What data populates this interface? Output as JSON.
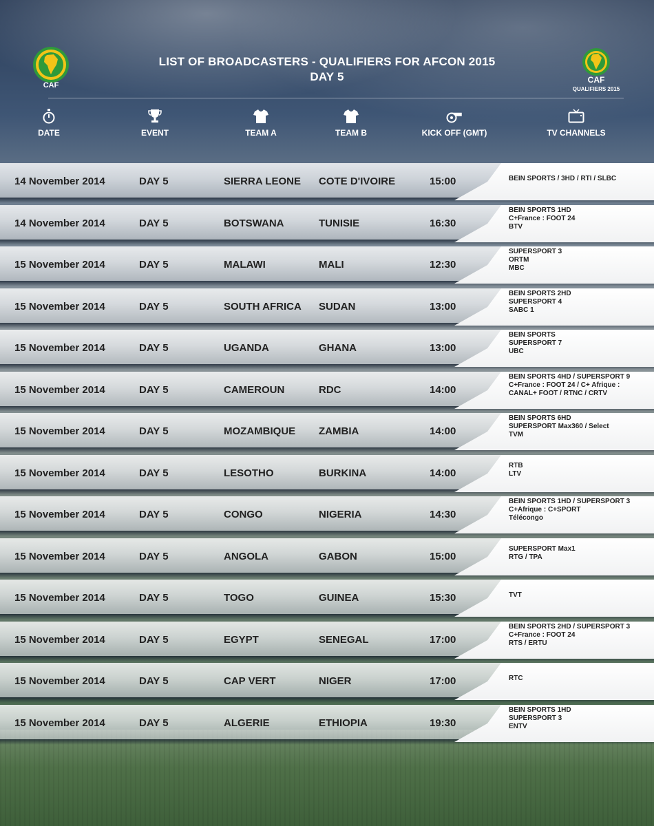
{
  "header": {
    "title_line1": "LIST OF BROADCASTERS - QUALIFIERS FOR AFCON 2015",
    "title_line2": "DAY 5",
    "logo_left_text": "CAF",
    "logo_right_text": "CAF",
    "logo_right_sub": "QUALIFIERS 2015"
  },
  "columns": {
    "date": "DATE",
    "event": "EVENT",
    "team_a": "TEAM A",
    "team_b": "TEAM B",
    "kickoff": "KICK OFF (GMT)",
    "tv": "TV CHANNELS"
  },
  "icons": {
    "date": "stopwatch-icon",
    "event": "trophy-icon",
    "team_a": "jersey-icon",
    "team_b": "jersey-icon",
    "kickoff": "whistle-icon",
    "tv": "tv-icon"
  },
  "matches": [
    {
      "date": "14 November 2014",
      "event": "DAY 5",
      "team_a": "SIERRA LEONE",
      "team_b": "COTE D'IVOIRE",
      "kickoff": "15:00",
      "tv": [
        "BEIN SPORTS / 3HD / RTI / SLBC"
      ]
    },
    {
      "date": "14 November 2014",
      "event": "DAY 5",
      "team_a": "BOTSWANA",
      "team_b": "TUNISIE",
      "kickoff": "16:30",
      "tv": [
        "BEIN SPORTS 1HD",
        "C+France : FOOT 24",
        "BTV"
      ]
    },
    {
      "date": "15 November 2014",
      "event": "DAY 5",
      "team_a": "MALAWI",
      "team_b": "MALI",
      "kickoff": "12:30",
      "tv": [
        "SUPERSPORT 3",
        "ORTM",
        "MBC"
      ]
    },
    {
      "date": "15 November 2014",
      "event": "DAY 5",
      "team_a": "SOUTH AFRICA",
      "team_b": "SUDAN",
      "kickoff": "13:00",
      "tv": [
        "BEIN SPORTS 2HD",
        "SUPERSPORT 4",
        "SABC 1"
      ]
    },
    {
      "date": "15 November 2014",
      "event": "DAY 5",
      "team_a": "UGANDA",
      "team_b": "GHANA",
      "kickoff": "13:00",
      "tv": [
        "BEIN SPORTS",
        "SUPERSPORT 7",
        "UBC"
      ]
    },
    {
      "date": "15 November 2014",
      "event": "DAY 5",
      "team_a": "CAMEROUN",
      "team_b": "RDC",
      "kickoff": "14:00",
      "tv": [
        "BEIN SPORTS 4HD / SUPERSPORT 9",
        "C+France : FOOT 24 / C+ Afrique :",
        "CANAL+ FOOT / RTNC / CRTV"
      ]
    },
    {
      "date": "15 November 2014",
      "event": "DAY 5",
      "team_a": "MOZAMBIQUE",
      "team_b": "ZAMBIA",
      "kickoff": "14:00",
      "tv": [
        "BEIN SPORTS 6HD",
        "SUPERSPORT Max360 / Select",
        "TVM"
      ]
    },
    {
      "date": "15 November 2014",
      "event": "DAY 5",
      "team_a": "LESOTHO",
      "team_b": "BURKINA",
      "kickoff": "14:00",
      "tv": [
        "RTB",
        "LTV"
      ]
    },
    {
      "date": "15 November 2014",
      "event": "DAY 5",
      "team_a": "CONGO",
      "team_b": "NIGERIA",
      "kickoff": "14:30",
      "tv": [
        "BEIN SPORTS 1HD / SUPERSPORT 3",
        "C+Afrique : C+SPORT",
        "Télécongo"
      ]
    },
    {
      "date": "15 November 2014",
      "event": "DAY 5",
      "team_a": "ANGOLA",
      "team_b": "GABON",
      "kickoff": "15:00",
      "tv": [
        "SUPERSPORT Max1",
        "RTG / TPA"
      ]
    },
    {
      "date": "15 November 2014",
      "event": "DAY 5",
      "team_a": "TOGO",
      "team_b": "GUINEA",
      "kickoff": "15:30",
      "tv": [
        "TVT"
      ]
    },
    {
      "date": "15 November 2014",
      "event": "DAY 5",
      "team_a": "EGYPT",
      "team_b": "SENEGAL",
      "kickoff": "17:00",
      "tv": [
        "BEIN SPORTS 2HD / SUPERSPORT 3",
        "C+France : FOOT 24",
        "RTS / ERTU"
      ]
    },
    {
      "date": "15 November 2014",
      "event": "DAY 5",
      "team_a": "CAP VERT",
      "team_b": "NIGER",
      "kickoff": "17:00",
      "tv": [
        "RTC"
      ]
    },
    {
      "date": "15 November 2014",
      "event": "DAY 5",
      "team_a": "ALGERIE",
      "team_b": "ETHIOPIA",
      "kickoff": "19:30",
      "tv": [
        "BEIN SPORTS 1HD",
        "SUPERSPORT 3",
        "ENTV"
      ]
    }
  ]
}
